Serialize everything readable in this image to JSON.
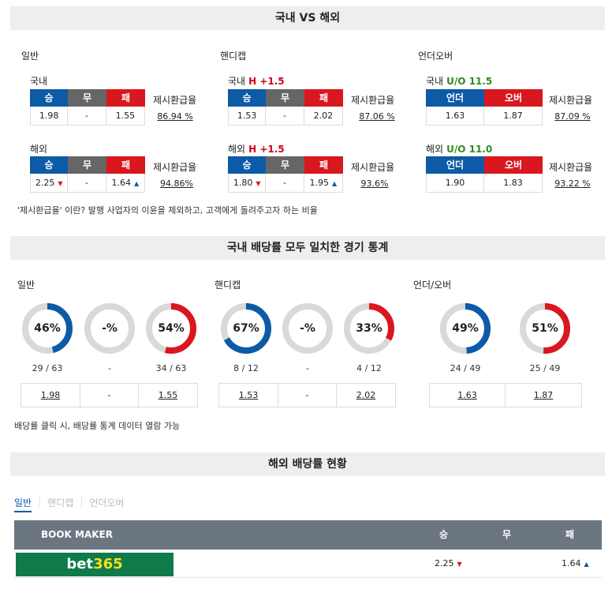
{
  "sections": {
    "compare_title": "국내 VS 해외",
    "stats_title": "국내 배당률 모두 일치한 경기 통계",
    "overseas_title": "해외 배당률 현황"
  },
  "colors": {
    "blue": "#0d5aa7",
    "red": "#d9171e",
    "gray": "#666666",
    "green_uo": "#2e8b1e",
    "bet365_bg": "#0f7b4a"
  },
  "compare": {
    "general": {
      "label": "일반",
      "domestic": {
        "label": "국내",
        "h1": "승",
        "h2": "무",
        "h3": "패",
        "ret_label": "제시환급율",
        "v1": "1.98",
        "v2": "-",
        "v3": "1.55",
        "ret": "86.94 %"
      },
      "overseas": {
        "label": "해외",
        "h1": "승",
        "h2": "무",
        "h3": "패",
        "ret_label": "제시환급율",
        "v1": "2.25",
        "v2": "-",
        "v3": "1.64",
        "ret": "94.86%"
      }
    },
    "handicap": {
      "label": "핸디캡",
      "domestic": {
        "label": "국내",
        "tag": "H +1.5",
        "h1": "승",
        "h2": "무",
        "h3": "패",
        "ret_label": "제시환급율",
        "v1": "1.53",
        "v2": "-",
        "v3": "2.02",
        "ret": "87.06 %"
      },
      "overseas": {
        "label": "해외",
        "tag": "H +1.5",
        "h1": "승",
        "h2": "무",
        "h3": "패",
        "ret_label": "제시환급율",
        "v1": "1.80",
        "v2": "-",
        "v3": "1.95",
        "ret": "93.6%"
      }
    },
    "underover": {
      "label": "언더오버",
      "domestic": {
        "label": "국내",
        "tag": "U/O 11.5",
        "h1": "언더",
        "h2": "오버",
        "ret_label": "제시환급율",
        "v1": "1.63",
        "v2": "1.87",
        "ret": "87.09 %"
      },
      "overseas": {
        "label": "해외",
        "tag": "U/O 11.0",
        "h1": "언더",
        "h2": "오버",
        "ret_label": "제시환급율",
        "v1": "1.90",
        "v2": "1.83",
        "ret": "93.22 %"
      }
    },
    "note": "'제시환급율' 이란? 발행 사업자의 이윤을 제외하고, 고객에게 돌려주고자 하는 비율"
  },
  "stats": {
    "general": {
      "label": "일반",
      "donuts": [
        {
          "text": "46%",
          "percent": 46,
          "color": "blue",
          "count": "29 / 63"
        },
        {
          "text": "-%",
          "percent": 0,
          "color": "gray",
          "count": "-"
        },
        {
          "text": "54%",
          "percent": 54,
          "color": "red",
          "count": "34 / 63"
        }
      ],
      "odds": [
        "1.98",
        "-",
        "1.55"
      ]
    },
    "handicap": {
      "label": "핸디캡",
      "donuts": [
        {
          "text": "67%",
          "percent": 67,
          "color": "blue",
          "count": "8 / 12"
        },
        {
          "text": "-%",
          "percent": 0,
          "color": "gray",
          "count": "-"
        },
        {
          "text": "33%",
          "percent": 33,
          "color": "red",
          "count": "4 / 12"
        }
      ],
      "odds": [
        "1.53",
        "-",
        "2.02"
      ]
    },
    "underover": {
      "label": "언더/오버",
      "donuts": [
        {
          "text": "49%",
          "percent": 49,
          "color": "blue",
          "count": "24 / 49"
        },
        {
          "text": "51%",
          "percent": 51,
          "color": "red",
          "count": "25 / 49"
        }
      ],
      "odds": [
        "1.63",
        "1.87"
      ]
    },
    "note": "배당률 클릭 시, 배당률 통계 데이터 열람 가능"
  },
  "overseas": {
    "tabs": [
      "일반",
      "핸디캡",
      "언더오버"
    ],
    "columns": {
      "bookmaker": "BOOK MAKER",
      "win": "승",
      "draw": "무",
      "lose": "패"
    },
    "rows": [
      {
        "brand_a": "bet",
        "brand_b": "365",
        "win": "2.25",
        "win_dir": "down",
        "draw": "",
        "lose": "1.64",
        "lose_dir": "up"
      }
    ]
  }
}
